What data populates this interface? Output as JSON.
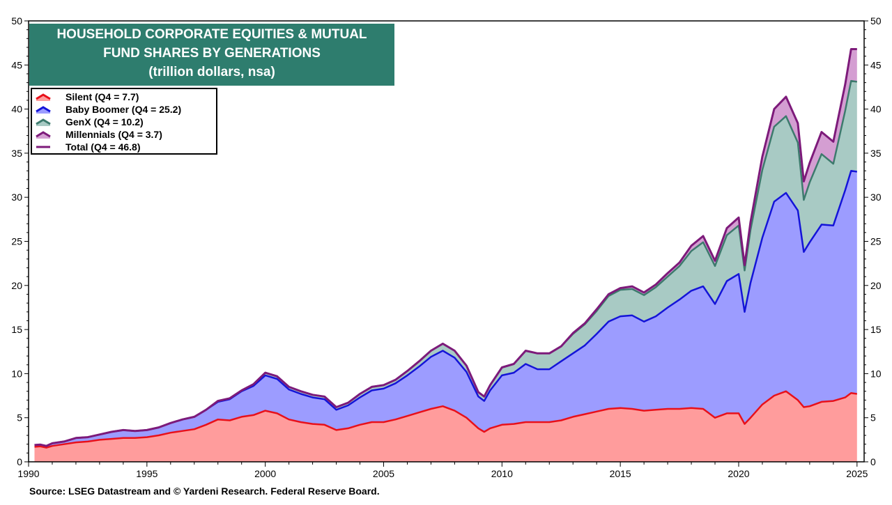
{
  "title": {
    "line1": "HOUSEHOLD CORPORATE EQUITIES & MUTUAL",
    "line2": "FUND SHARES BY GENERATIONS",
    "line3": "(trillion dollars, nsa)"
  },
  "source": "Source: LSEG Datastream and © Yardeni Research. Federal Reserve Board.",
  "legend": [
    {
      "label": "Silent (Q4 = 7.7)",
      "icon": "line-over-area-swatch",
      "line_color": "#e8101a",
      "fill_color": "#ff9c9c"
    },
    {
      "label": "Baby Boomer (Q4 = 25.2)",
      "icon": "line-over-area-swatch",
      "line_color": "#1414d8",
      "fill_color": "#9c9cff"
    },
    {
      "label": "GenX (Q4 = 10.2)",
      "icon": "line-over-area-swatch",
      "line_color": "#3d7a6d",
      "fill_color": "#a8cac4"
    },
    {
      "label": "Millennials (Q4 = 3.7)",
      "icon": "line-over-area-swatch",
      "line_color": "#7d1a7a",
      "fill_color": "#d49ed2"
    },
    {
      "label": "Total (Q4 = 46.8)",
      "icon": "line-swatch",
      "line_color": "#7d1a7a"
    }
  ],
  "colors": {
    "title_bg": "#2e7d6e",
    "silent_fill": "#ff9c9c",
    "silent_line": "#e8101a",
    "boomer_fill": "#9c9cff",
    "boomer_line": "#1414d8",
    "genx_fill": "#a8cac4",
    "genx_line": "#3d7a6d",
    "millennial_fill": "#d49ed2",
    "millennial_line": "#7d1a7a"
  },
  "chart_data": {
    "type": "area",
    "stacked": true,
    "title": "HOUSEHOLD CORPORATE EQUITIES & MUTUAL FUND SHARES BY GENERATIONS (trillion dollars, nsa)",
    "xlim": [
      1990,
      2025.3
    ],
    "ylim": [
      0,
      50
    ],
    "x_ticks": [
      1990,
      1995,
      2000,
      2005,
      2010,
      2015,
      2020,
      2025
    ],
    "y_ticks": [
      0,
      5,
      10,
      15,
      20,
      25,
      30,
      35,
      40,
      45,
      50
    ],
    "y_axis_both_sides": true,
    "grid": false,
    "legend_position": "top-left",
    "x": [
      1990.25,
      1990.5,
      1990.75,
      1991.0,
      1991.5,
      1992.0,
      1992.5,
      1993.0,
      1993.5,
      1994.0,
      1994.5,
      1995.0,
      1995.5,
      1996.0,
      1996.5,
      1997.0,
      1997.5,
      1998.0,
      1998.5,
      1999.0,
      1999.5,
      2000.0,
      2000.5,
      2001.0,
      2001.5,
      2002.0,
      2002.5,
      2003.0,
      2003.5,
      2004.0,
      2004.5,
      2005.0,
      2005.5,
      2006.0,
      2006.5,
      2007.0,
      2007.5,
      2008.0,
      2008.5,
      2009.0,
      2009.25,
      2009.5,
      2010.0,
      2010.5,
      2011.0,
      2011.5,
      2012.0,
      2012.5,
      2013.0,
      2013.5,
      2014.0,
      2014.5,
      2015.0,
      2015.5,
      2016.0,
      2016.5,
      2017.0,
      2017.5,
      2018.0,
      2018.5,
      2019.0,
      2019.5,
      2020.0,
      2020.25,
      2020.5,
      2021.0,
      2021.5,
      2022.0,
      2022.5,
      2022.75,
      2023.0,
      2023.5,
      2024.0,
      2024.5,
      2024.75,
      2025.0
    ],
    "series": [
      {
        "name": "Silent (Q4 = 7.7)",
        "values": [
          1.7,
          1.75,
          1.6,
          1.8,
          2.0,
          2.2,
          2.3,
          2.5,
          2.6,
          2.7,
          2.7,
          2.8,
          3.0,
          3.3,
          3.5,
          3.7,
          4.2,
          4.8,
          4.7,
          5.1,
          5.3,
          5.8,
          5.5,
          4.8,
          4.5,
          4.3,
          4.2,
          3.6,
          3.8,
          4.2,
          4.5,
          4.5,
          4.8,
          5.2,
          5.6,
          6.0,
          6.3,
          5.8,
          5.0,
          3.8,
          3.4,
          3.8,
          4.2,
          4.3,
          4.5,
          4.5,
          4.5,
          4.7,
          5.1,
          5.4,
          5.7,
          6.0,
          6.1,
          6.0,
          5.8,
          5.9,
          6.0,
          6.0,
          6.1,
          6.0,
          5.0,
          5.5,
          5.5,
          4.3,
          5.0,
          6.5,
          7.5,
          8.0,
          7.0,
          6.2,
          6.3,
          6.8,
          6.9,
          7.3,
          7.8,
          7.7
        ]
      },
      {
        "name": "Baby Boomer (Q4 = 25.2)",
        "values": [
          0.2,
          0.2,
          0.2,
          0.3,
          0.3,
          0.5,
          0.5,
          0.6,
          0.8,
          0.9,
          0.8,
          0.8,
          0.9,
          1.1,
          1.3,
          1.4,
          1.7,
          2.0,
          2.4,
          2.9,
          3.3,
          4.0,
          3.9,
          3.4,
          3.2,
          3.0,
          2.9,
          2.3,
          2.6,
          3.1,
          3.6,
          3.8,
          4.1,
          4.6,
          5.2,
          5.9,
          6.3,
          6.0,
          5.2,
          3.6,
          3.5,
          4.3,
          5.6,
          5.8,
          6.6,
          6.0,
          6.0,
          6.7,
          7.2,
          7.8,
          8.8,
          9.9,
          10.4,
          10.6,
          10.1,
          10.6,
          11.5,
          12.4,
          13.3,
          13.9,
          12.9,
          15.0,
          15.8,
          12.7,
          15.3,
          18.9,
          22.0,
          22.5,
          21.5,
          17.6,
          18.6,
          20.1,
          19.9,
          23.5,
          25.2,
          25.2
        ]
      },
      {
        "name": "GenX (Q4 = 10.2)",
        "values": [
          0.0,
          0.0,
          0.0,
          0.0,
          0.0,
          0.0,
          0.0,
          0.0,
          0.0,
          0.0,
          0.0,
          0.0,
          0.0,
          0.0,
          0.0,
          0.0,
          0.0,
          0.1,
          0.1,
          0.1,
          0.2,
          0.3,
          0.3,
          0.3,
          0.3,
          0.3,
          0.3,
          0.3,
          0.3,
          0.4,
          0.4,
          0.4,
          0.4,
          0.5,
          0.6,
          0.7,
          0.8,
          0.8,
          0.7,
          0.5,
          0.5,
          0.6,
          0.9,
          1.0,
          1.5,
          1.8,
          1.8,
          1.7,
          2.2,
          2.4,
          2.6,
          2.9,
          3.0,
          3.0,
          3.0,
          3.3,
          3.5,
          3.8,
          4.5,
          5.0,
          4.3,
          5.2,
          5.5,
          4.7,
          6.0,
          7.7,
          8.5,
          8.7,
          7.7,
          5.9,
          6.8,
          8.0,
          7.0,
          9.0,
          10.2,
          10.2
        ]
      },
      {
        "name": "Millennials (Q4 = 3.7)",
        "values": [
          0.0,
          0.0,
          0.0,
          0.0,
          0.0,
          0.0,
          0.0,
          0.0,
          0.0,
          0.0,
          0.0,
          0.0,
          0.0,
          0.0,
          0.0,
          0.0,
          0.0,
          0.0,
          0.0,
          0.0,
          0.0,
          0.0,
          0.0,
          0.0,
          0.0,
          0.0,
          0.0,
          0.0,
          0.0,
          0.0,
          0.0,
          0.0,
          0.0,
          0.0,
          0.0,
          0.0,
          0.0,
          0.0,
          0.0,
          0.0,
          0.0,
          0.0,
          0.0,
          0.0,
          0.0,
          0.0,
          0.0,
          0.0,
          0.1,
          0.1,
          0.2,
          0.2,
          0.2,
          0.3,
          0.3,
          0.3,
          0.4,
          0.4,
          0.6,
          0.7,
          0.6,
          0.8,
          0.9,
          0.6,
          0.9,
          1.5,
          2.0,
          2.2,
          2.2,
          2.1,
          2.2,
          2.5,
          2.5,
          3.0,
          3.6,
          3.7
        ]
      }
    ]
  }
}
